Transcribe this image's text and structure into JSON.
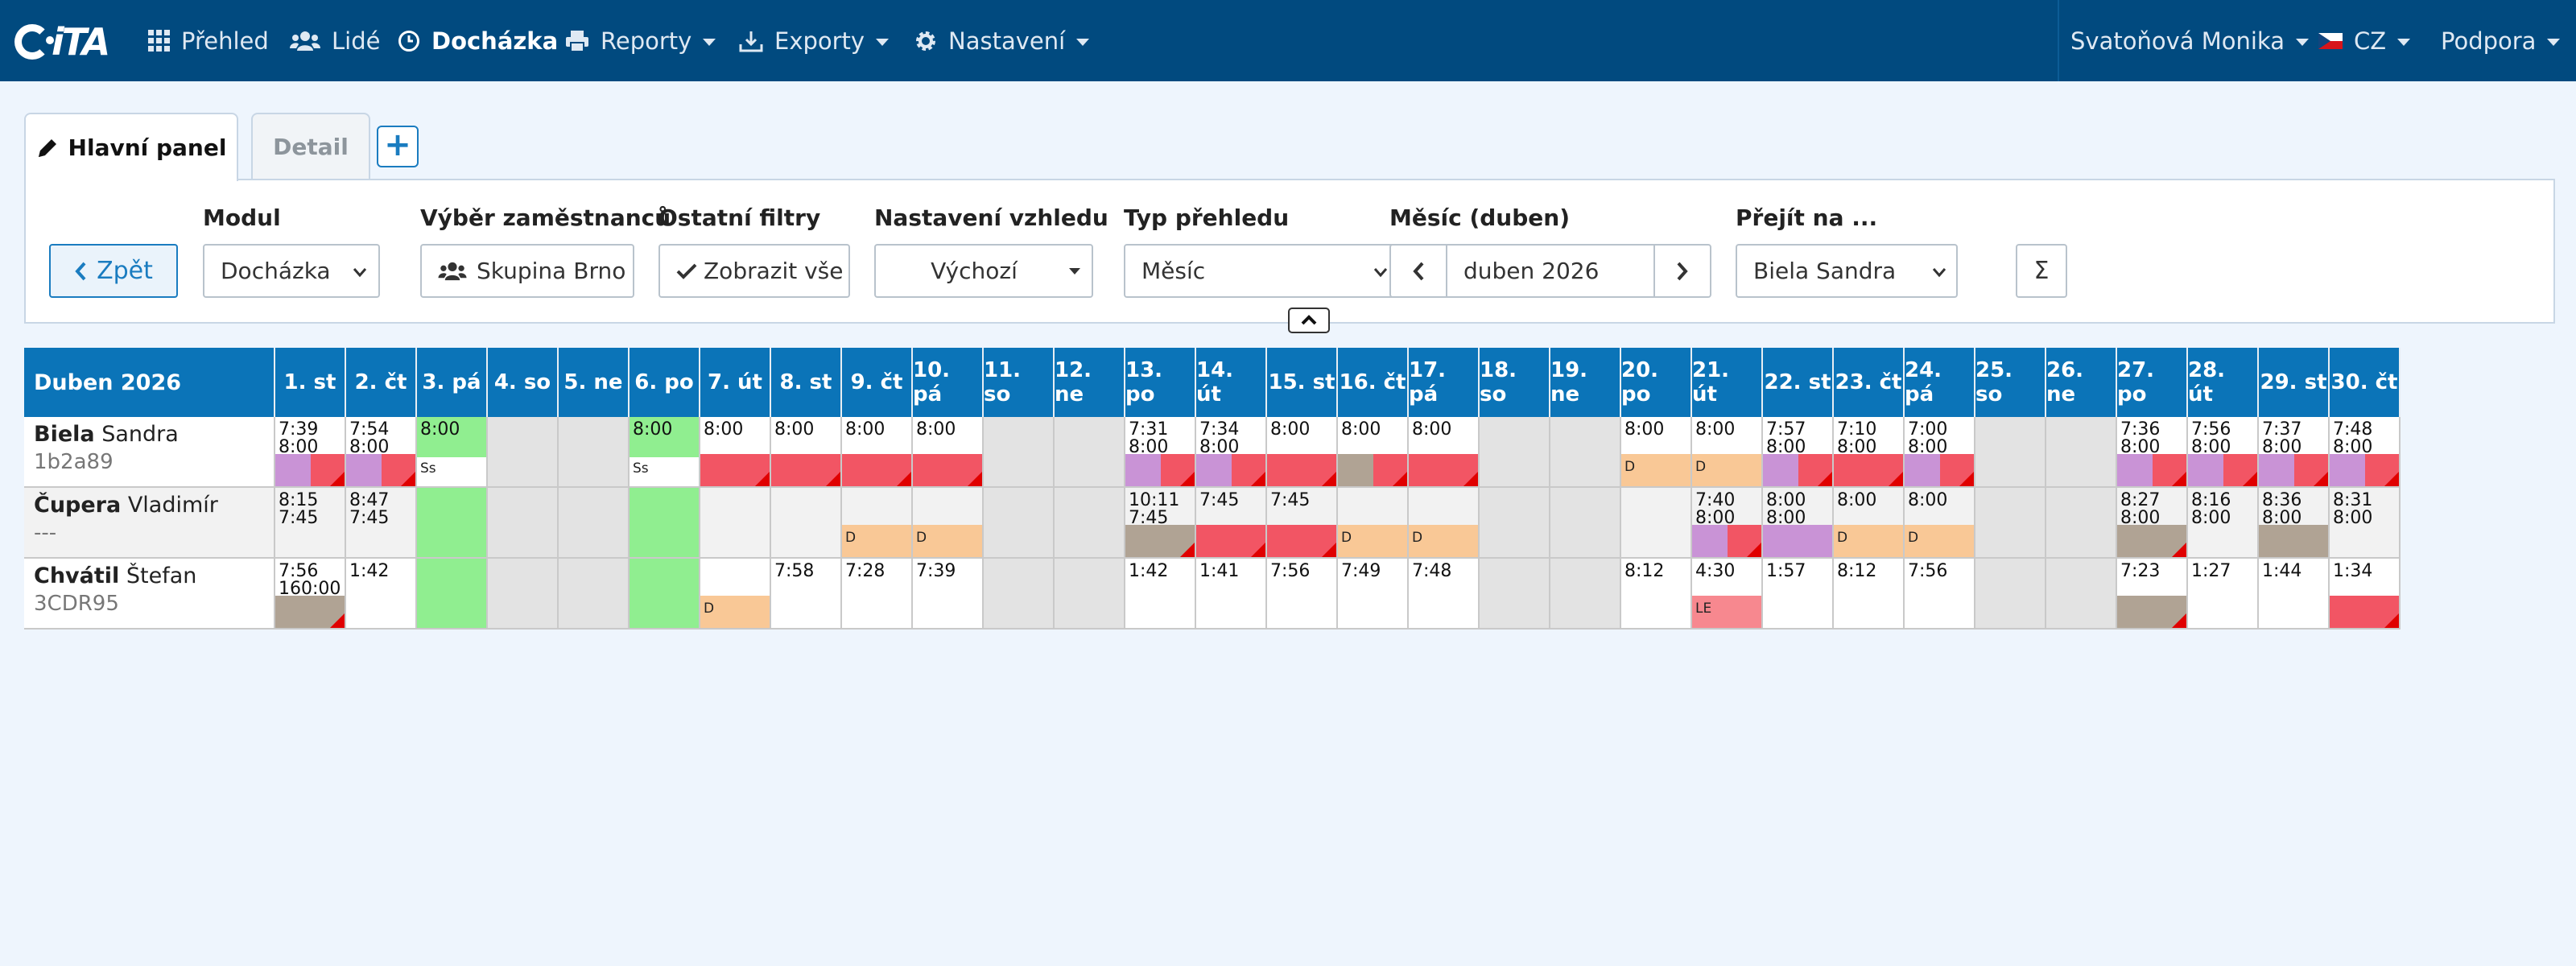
{
  "nav": {
    "logo": "iTA",
    "items": [
      {
        "id": "prehled",
        "label": "Přehled",
        "icon": "grid-icon",
        "dropdown": false
      },
      {
        "id": "lide",
        "label": "Lidé",
        "icon": "users-icon",
        "dropdown": false
      },
      {
        "id": "dochazka",
        "label": "Docházka",
        "icon": "clock-icon",
        "dropdown": false,
        "active": true
      },
      {
        "id": "reporty",
        "label": "Reporty",
        "icon": "print-icon",
        "dropdown": true
      },
      {
        "id": "exporty",
        "label": "Exporty",
        "icon": "export-icon",
        "dropdown": true
      },
      {
        "id": "nastaveni",
        "label": "Nastavení",
        "icon": "gear-icon",
        "dropdown": true
      }
    ],
    "user": "Svatoňová Monika",
    "lang": "CZ",
    "support": "Podpora"
  },
  "tabs": {
    "main": "Hlavní panel",
    "detail": "Detail",
    "add": "+"
  },
  "filters": {
    "back": "Zpět",
    "modul_label": "Modul",
    "modul_value": "Docházka",
    "vyber_label": "Výběr zaměstnanců",
    "vyber_value": "Skupina Brno",
    "ostatni_label": "Ostatní filtry",
    "ostatni_value": "Zobrazit vše",
    "vzhled_label": "Nastavení vzhledu",
    "vzhled_value": "Výchozí",
    "typ_label": "Typ přehledu",
    "typ_value": "Měsíc",
    "mesic_label": "Měsíc (duben)",
    "mesic_value": "duben 2026",
    "prejit_label": "Přejít na ...",
    "prejit_value": "Biela Sandra",
    "sum_label": "Σ"
  },
  "colors": {
    "nav": "#014a7f",
    "header": "#0b74b8",
    "weekend": "#e3e3e3",
    "holiday": "#90ee90",
    "red": "#f25564",
    "purple": "#c993d6",
    "taupe": "#b0a394",
    "orange": "#f9c896",
    "pink": "#f7888f"
  },
  "calendar": {
    "title": "Duben 2026",
    "days": [
      "1. st",
      "2. čt",
      "3. pá",
      "4. so",
      "5. ne",
      "6. po",
      "7. út",
      "8. st",
      "9. čt",
      "10. pá",
      "11. so",
      "12. ne",
      "13. po",
      "14. út",
      "15. st",
      "16. čt",
      "17. pá",
      "18. so",
      "19. ne",
      "20. po",
      "21. út",
      "22. st",
      "23. čt",
      "24. pá",
      "25. so",
      "26. ne",
      "27. po",
      "28. út",
      "29. st",
      "30. čt"
    ],
    "weekend_days": [
      4,
      5,
      11,
      12,
      18,
      19,
      25,
      26
    ],
    "holiday_days": [
      3,
      6
    ],
    "employees": [
      {
        "surname": "Biela",
        "firstname": "Sandra",
        "sub": "1b2a89",
        "cells": {
          "1": {
            "lines": [
              "7:39",
              "8:00"
            ],
            "bar": [
              "purple",
              "red"
            ],
            "flag": true
          },
          "2": {
            "lines": [
              "7:54",
              "8:00"
            ],
            "bar": [
              "purple",
              "red"
            ],
            "flag": true
          },
          "3": {
            "lines": [
              "8:00"
            ],
            "code": "Ss"
          },
          "6": {
            "lines": [
              "8:00"
            ],
            "code": "Ss"
          },
          "7": {
            "lines": [
              "8:00"
            ],
            "bar": [
              "red"
            ],
            "flag": true
          },
          "8": {
            "lines": [
              "8:00"
            ],
            "bar": [
              "red"
            ],
            "flag": true
          },
          "9": {
            "lines": [
              "8:00"
            ],
            "bar": [
              "red"
            ],
            "flag": true
          },
          "10": {
            "lines": [
              "8:00"
            ],
            "bar": [
              "red"
            ],
            "flag": true
          },
          "13": {
            "lines": [
              "7:31",
              "8:00"
            ],
            "bar": [
              "purple",
              "red"
            ],
            "flag": true
          },
          "14": {
            "lines": [
              "7:34",
              "8:00"
            ],
            "bar": [
              "purple",
              "red"
            ],
            "flag": true
          },
          "15": {
            "lines": [
              "8:00"
            ],
            "bar": [
              "red"
            ],
            "flag": true
          },
          "16": {
            "lines": [
              "8:00"
            ],
            "bar": [
              "taupe",
              "red"
            ],
            "flag": true
          },
          "17": {
            "lines": [
              "8:00"
            ],
            "bar": [
              "red"
            ],
            "flag": true
          },
          "20": {
            "lines": [
              "8:00"
            ],
            "bar": [
              "orange"
            ],
            "letter": "D"
          },
          "21": {
            "lines": [
              "8:00"
            ],
            "bar": [
              "orange"
            ],
            "letter": "D"
          },
          "22": {
            "lines": [
              "7:57",
              "8:00"
            ],
            "bar": [
              "purple",
              "red"
            ],
            "flag": true
          },
          "23": {
            "lines": [
              "7:10",
              "8:00"
            ],
            "bar": [
              "red"
            ],
            "flag": true
          },
          "24": {
            "lines": [
              "7:00",
              "8:00"
            ],
            "bar": [
              "purple",
              "red"
            ],
            "flag": true
          },
          "27": {
            "lines": [
              "7:36",
              "8:00"
            ],
            "bar": [
              "purple",
              "red"
            ],
            "flag": true
          },
          "28": {
            "lines": [
              "7:56",
              "8:00"
            ],
            "bar": [
              "purple",
              "red"
            ],
            "flag": true
          },
          "29": {
            "lines": [
              "7:37",
              "8:00"
            ],
            "bar": [
              "purple",
              "red"
            ],
            "flag": true
          },
          "30": {
            "lines": [
              "7:48",
              "8:00"
            ],
            "bar": [
              "purple",
              "red"
            ],
            "flag": true
          }
        }
      },
      {
        "surname": "Čupera",
        "firstname": "Vladimír",
        "sub": "---",
        "cells": {
          "1": {
            "lines": [
              "8:15",
              "7:45"
            ]
          },
          "2": {
            "lines": [
              "8:47",
              "7:45"
            ]
          },
          "9": {
            "bar": [
              "orange"
            ],
            "letter": "D"
          },
          "10": {
            "bar": [
              "orange"
            ],
            "letter": "D"
          },
          "13": {
            "lines": [
              "10:11",
              "7:45"
            ],
            "bar": [
              "taupe"
            ],
            "flag": true
          },
          "14": {
            "lines": [
              "7:45"
            ],
            "bar": [
              "red"
            ],
            "flag": true
          },
          "15": {
            "lines": [
              "7:45"
            ],
            "bar": [
              "red"
            ],
            "flag": true
          },
          "16": {
            "bar": [
              "orange"
            ],
            "letter": "D"
          },
          "17": {
            "bar": [
              "orange"
            ],
            "letter": "D"
          },
          "21": {
            "lines": [
              "7:40",
              "8:00"
            ],
            "bar": [
              "purple",
              "red"
            ],
            "flag": true
          },
          "22": {
            "lines": [
              "8:00",
              "8:00"
            ],
            "bar": [
              "purple"
            ]
          },
          "23": {
            "lines": [
              "8:00"
            ],
            "bar": [
              "orange"
            ],
            "letter": "D"
          },
          "24": {
            "lines": [
              "8:00"
            ],
            "bar": [
              "orange"
            ],
            "letter": "D"
          },
          "27": {
            "lines": [
              "8:27",
              "8:00"
            ],
            "bar": [
              "taupe"
            ],
            "flag": true
          },
          "28": {
            "lines": [
              "8:16",
              "8:00"
            ]
          },
          "29": {
            "lines": [
              "8:36",
              "8:00"
            ],
            "bar": [
              "taupe"
            ]
          },
          "30": {
            "lines": [
              "8:31",
              "8:00"
            ]
          }
        }
      },
      {
        "surname": "Chvátil",
        "firstname": "Štefan",
        "sub": "3CDR95",
        "cells": {
          "1": {
            "lines": [
              "7:56",
              "160:00"
            ],
            "bar": [
              "taupe"
            ],
            "flag": true
          },
          "2": {
            "lines": [
              "1:42"
            ]
          },
          "7": {
            "bar": [
              "orange"
            ],
            "letter": "D"
          },
          "8": {
            "lines": [
              "7:58"
            ]
          },
          "9": {
            "lines": [
              "7:28"
            ]
          },
          "10": {
            "lines": [
              "7:39"
            ]
          },
          "13": {
            "lines": [
              "1:42"
            ]
          },
          "14": {
            "lines": [
              "1:41"
            ]
          },
          "15": {
            "lines": [
              "7:56"
            ]
          },
          "16": {
            "lines": [
              "7:49"
            ]
          },
          "17": {
            "lines": [
              "7:48"
            ]
          },
          "20": {
            "lines": [
              "8:12"
            ]
          },
          "21": {
            "lines": [
              "4:30"
            ],
            "bar": [
              "pink"
            ],
            "letter": "LE"
          },
          "22": {
            "lines": [
              "1:57"
            ]
          },
          "23": {
            "lines": [
              "8:12"
            ]
          },
          "24": {
            "lines": [
              "7:56"
            ]
          },
          "27": {
            "lines": [
              "7:23"
            ],
            "bar": [
              "taupe"
            ],
            "flag": true
          },
          "28": {
            "lines": [
              "1:27"
            ]
          },
          "29": {
            "lines": [
              "1:44"
            ]
          },
          "30": {
            "lines": [
              "1:34"
            ],
            "bar": [
              "red"
            ],
            "flag": true
          }
        }
      }
    ]
  }
}
